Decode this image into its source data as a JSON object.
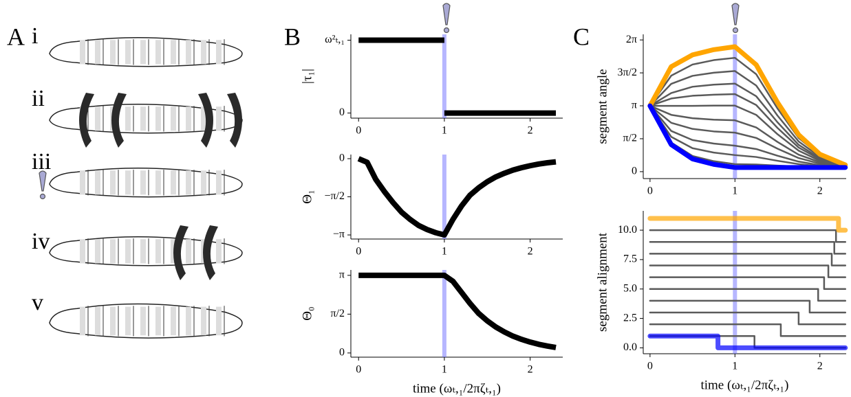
{
  "panel_labels": [
    "A",
    "B",
    "C"
  ],
  "stage_labels": [
    "i",
    "ii",
    "iii",
    "iv",
    "v"
  ],
  "chart_data": [
    {
      "type": "line",
      "ylabel": "|τ₁|",
      "xlim": [
        -0.09,
        2.38
      ],
      "xticks": [
        0,
        1,
        2
      ],
      "ylim": [
        -0.07,
        1.08
      ],
      "yticks": [
        0,
        {
          "value": 1,
          "label": "ω²ₜ,₁"
        }
      ],
      "vline": 1,
      "x": [
        0,
        1,
        1,
        1,
        2.3
      ],
      "series": [
        {
          "color": "#000000",
          "values": [
            1,
            1,
            null,
            0,
            0
          ]
        }
      ]
    },
    {
      "type": "line",
      "ylabel": "Θ₁",
      "xlim": [
        -0.09,
        2.38
      ],
      "xticks": [
        0,
        1,
        2
      ],
      "ylim": [
        -3.31,
        0.17
      ],
      "yticks": [
        {
          "value": 0,
          "label": "0"
        },
        {
          "value": -1.5708,
          "label": "−π/2"
        },
        {
          "value": -3.1416,
          "label": "−π"
        }
      ],
      "vline": 1,
      "x": [
        0,
        0.1,
        0.2,
        0.3,
        0.4,
        0.5,
        0.6,
        0.7,
        0.8,
        0.9,
        1,
        1.1,
        1.2,
        1.3,
        1.4,
        1.5,
        1.6,
        1.7,
        1.8,
        1.9,
        2,
        2.1,
        2.2,
        2.3
      ],
      "series": [
        {
          "color": "#000000",
          "values": [
            0,
            -0.15,
            -0.85,
            -1.35,
            -1.8,
            -2.2,
            -2.5,
            -2.75,
            -2.92,
            -3.05,
            -3.14,
            -2.5,
            -1.95,
            -1.5,
            -1.2,
            -0.95,
            -0.75,
            -0.6,
            -0.47,
            -0.37,
            -0.29,
            -0.22,
            -0.17,
            -0.13
          ]
        }
      ]
    },
    {
      "type": "line",
      "ylabel": "Θ₀",
      "xlabel": "time (ωₜ,₁/2πζₜ,₁)",
      "xlim": [
        -0.09,
        2.38
      ],
      "xticks": [
        0,
        1,
        2
      ],
      "ylim": [
        -0.17,
        3.36
      ],
      "yticks": [
        {
          "value": 0,
          "label": "0"
        },
        {
          "value": 1.5708,
          "label": "π/2"
        },
        {
          "value": 3.1416,
          "label": "π"
        }
      ],
      "vline": 1,
      "x": [
        0,
        0.1,
        0.2,
        0.3,
        0.4,
        0.5,
        0.6,
        0.7,
        0.8,
        0.9,
        1,
        1.1,
        1.2,
        1.3,
        1.4,
        1.5,
        1.6,
        1.7,
        1.8,
        1.9,
        2,
        2.1,
        2.2,
        2.3
      ],
      "series": [
        {
          "color": "#000000",
          "values": [
            3.1416,
            3.1416,
            3.1416,
            3.1416,
            3.1416,
            3.1416,
            3.1416,
            3.1416,
            3.1416,
            3.1416,
            3.1416,
            2.9,
            2.45,
            2.0,
            1.6,
            1.3,
            1.05,
            0.85,
            0.68,
            0.55,
            0.44,
            0.35,
            0.28,
            0.22
          ]
        }
      ]
    },
    {
      "type": "line",
      "ylabel": "segment angle",
      "xlim": [
        -0.08,
        2.31
      ],
      "xticks": [
        0,
        1,
        2
      ],
      "ylim": [
        -0.33,
        6.55
      ],
      "yticks": [
        {
          "value": 0,
          "label": "0"
        },
        {
          "value": 1.5708,
          "label": "π/2"
        },
        {
          "value": 3.1416,
          "label": "π"
        },
        {
          "value": 4.7124,
          "label": "3π/2"
        },
        {
          "value": 6.2832,
          "label": "2π"
        }
      ],
      "vline": 1,
      "x": [
        0,
        0.25,
        0.5,
        0.75,
        1,
        1.25,
        1.5,
        1.75,
        2,
        2.3
      ],
      "series": [
        {
          "color": "#5a5a5a",
          "values": [
            3.14,
            1.39,
            0.75,
            0.5,
            0.36,
            0.34,
            0.29,
            0.24,
            0.22,
            0.2
          ]
        },
        {
          "color": "#5a5a5a",
          "values": [
            3.14,
            1.66,
            1.12,
            0.91,
            0.79,
            0.7,
            0.52,
            0.36,
            0.26,
            0.21
          ]
        },
        {
          "color": "#5a5a5a",
          "values": [
            3.14,
            1.94,
            1.51,
            1.34,
            1.24,
            1.08,
            0.76,
            0.48,
            0.31,
            0.22
          ]
        },
        {
          "color": "#5a5a5a",
          "values": [
            3.14,
            2.33,
            2.04,
            1.92,
            1.86,
            1.61,
            1.1,
            0.65,
            0.38,
            0.23
          ]
        },
        {
          "color": "#5a5a5a",
          "values": [
            3.14,
            2.71,
            2.55,
            2.48,
            2.45,
            2.11,
            1.42,
            0.81,
            0.45,
            0.25
          ]
        },
        {
          "color": "#5a5a5a",
          "values": [
            3.14,
            3.14,
            3.14,
            3.15,
            3.15,
            2.71,
            1.79,
            1.0,
            0.52,
            0.26
          ]
        },
        {
          "color": "#5a5a5a",
          "values": [
            3.14,
            3.49,
            3.62,
            3.67,
            3.7,
            3.18,
            2.09,
            1.15,
            0.59,
            0.27
          ]
        },
        {
          "color": "#5a5a5a",
          "values": [
            3.14,
            3.75,
            4.05,
            4.15,
            4.2,
            3.6,
            2.36,
            1.28,
            0.64,
            0.28
          ]
        },
        {
          "color": "#5a5a5a",
          "values": [
            3.14,
            4.19,
            4.57,
            4.72,
            4.8,
            4.11,
            2.68,
            1.44,
            0.71,
            0.29
          ]
        },
        {
          "color": "#5a5a5a",
          "values": [
            3.14,
            4.58,
            5.11,
            5.32,
            5.43,
            4.65,
            3.02,
            1.61,
            0.78,
            0.3
          ]
        },
        {
          "color": "#ffa500",
          "values": [
            3.14,
            5.01,
            5.57,
            5.82,
            5.96,
            5.1,
            3.31,
            1.76,
            0.83,
            0.32
          ]
        },
        {
          "color": "#0000ff",
          "values": [
            3.14,
            1.29,
            0.61,
            0.35,
            0.2,
            0.2,
            0.2,
            0.2,
            0.2,
            0.2
          ]
        }
      ]
    },
    {
      "type": "line",
      "ylabel": "segment alignment",
      "xlabel": "time (ωₜ,₁/2πζₜ,₁)",
      "xlim": [
        -0.08,
        2.31
      ],
      "xticks": [
        0,
        1,
        2
      ],
      "ylim": [
        -0.5,
        11.64
      ],
      "yticks": [
        {
          "value": 0,
          "label": "0.0"
        },
        {
          "value": 2.5,
          "label": "2.5"
        },
        {
          "value": 5,
          "label": "5.0"
        },
        {
          "value": 7.5,
          "label": "7.5"
        },
        {
          "value": 10,
          "label": "10.0"
        }
      ],
      "vline": 1,
      "series": [
        {
          "color": "#5a5a5a",
          "x": [
            0,
            1.23,
            1.23,
            2.3
          ],
          "values": [
            1,
            1,
            0,
            0
          ]
        },
        {
          "color": "#5a5a5a",
          "x": [
            0,
            1.54,
            1.54,
            2.3
          ],
          "values": [
            2,
            2,
            1,
            1
          ]
        },
        {
          "color": "#5a5a5a",
          "x": [
            0,
            1.75,
            1.75,
            2.3
          ],
          "values": [
            3,
            3,
            2,
            2
          ]
        },
        {
          "color": "#5a5a5a",
          "x": [
            0,
            1.88,
            1.88,
            2.3
          ],
          "values": [
            4,
            4,
            3,
            3
          ]
        },
        {
          "color": "#5a5a5a",
          "x": [
            0,
            1.98,
            1.98,
            2.3
          ],
          "values": [
            5,
            5,
            4,
            4
          ]
        },
        {
          "color": "#5a5a5a",
          "x": [
            0,
            2.05,
            2.05,
            2.3
          ],
          "values": [
            6,
            6,
            5,
            5
          ]
        },
        {
          "color": "#5a5a5a",
          "x": [
            0,
            2.1,
            2.1,
            2.3
          ],
          "values": [
            7,
            7,
            6,
            6
          ]
        },
        {
          "color": "#5a5a5a",
          "x": [
            0,
            2.14,
            2.14,
            2.3
          ],
          "values": [
            8,
            8,
            7,
            7
          ]
        },
        {
          "color": "#5a5a5a",
          "x": [
            0,
            2.17,
            2.17,
            2.3
          ],
          "values": [
            9,
            9,
            8,
            8
          ]
        },
        {
          "color": "#5a5a5a",
          "x": [
            0,
            2.19,
            2.19,
            2.3
          ],
          "values": [
            10,
            10,
            9,
            9
          ]
        },
        {
          "color": "#ffa500",
          "x": [
            0,
            2.22,
            2.22,
            2.3
          ],
          "values": [
            11,
            11,
            10,
            10
          ]
        },
        {
          "color": "#0000ff",
          "x": [
            0,
            0.8,
            0.8,
            2.3
          ],
          "values": [
            1,
            1,
            0,
            0
          ]
        }
      ]
    }
  ]
}
